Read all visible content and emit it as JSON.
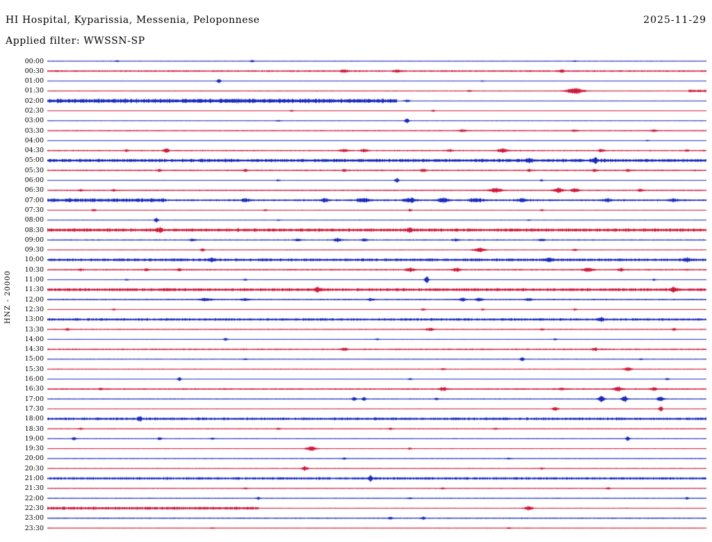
{
  "header": {
    "station_title": "HI Hospital, Kyparissia, Messenia, Peloponnese",
    "date": "2025-11-29",
    "filter_label": "Applied filter: WWSSN-SP"
  },
  "axis": {
    "channel_label": "HNZ - 20000"
  },
  "colors": {
    "b": "#1122bb",
    "r": "#cc1133",
    "background": "#ffffff",
    "text": "#000000"
  },
  "chart_data": {
    "type": "line",
    "subtype": "helicorder-seismogram",
    "title": "HI Hospital, Kyparissia, Messenia, Peloponnese",
    "date": "2025-11-29",
    "filter": "WWSSN-SP",
    "channel": "HNZ",
    "scale": 20000,
    "minutes_per_row": 30,
    "legend": "rows alternate colors b=blue, r=red; n=background noise amplitude px; sat=[startFrac,endFrac,ampPx] saturated band; sp=[posFrac,ampPx,widthPx] event spikes",
    "rows": [
      {
        "time": "00:00",
        "c": "b",
        "n": 0.35,
        "sat": [],
        "sp": [
          [
            0.105,
            1.2,
            2
          ],
          [
            0.31,
            1.8,
            2
          ],
          [
            0.8,
            1.0,
            2
          ]
        ]
      },
      {
        "time": "00:30",
        "c": "r",
        "n": 1.1,
        "sat": [],
        "sp": [
          [
            0.45,
            1.8,
            4
          ],
          [
            0.53,
            1.6,
            3
          ],
          [
            0.78,
            1.5,
            3
          ]
        ]
      },
      {
        "time": "01:00",
        "c": "b",
        "n": 0.3,
        "sat": [],
        "sp": [
          [
            0.26,
            3.8,
            2
          ],
          [
            0.66,
            1.0,
            2
          ]
        ]
      },
      {
        "time": "01:30",
        "c": "r",
        "n": 0.4,
        "sat": [
          [
            0.972,
            1.0,
            1.8
          ]
        ],
        "sp": [
          [
            0.64,
            1.2,
            2
          ],
          [
            0.8,
            4.5,
            9
          ]
        ]
      },
      {
        "time": "02:00",
        "c": "b",
        "n": 0.25,
        "sat": [
          [
            0.0,
            0.53,
            3.0
          ]
        ],
        "sp": [
          [
            0.545,
            2.0,
            3
          ]
        ]
      },
      {
        "time": "02:30",
        "c": "r",
        "n": 0.4,
        "sat": [],
        "sp": [
          [
            0.37,
            1.2,
            2
          ],
          [
            0.585,
            1.4,
            2
          ]
        ]
      },
      {
        "time": "03:00",
        "c": "b",
        "n": 0.35,
        "sat": [],
        "sp": [
          [
            0.35,
            1.0,
            2
          ],
          [
            0.545,
            4.2,
            2
          ]
        ]
      },
      {
        "time": "03:30",
        "c": "r",
        "n": 0.65,
        "sat": [],
        "sp": [
          [
            0.63,
            1.8,
            4
          ],
          [
            0.8,
            1.4,
            3
          ],
          [
            0.92,
            1.8,
            3
          ]
        ]
      },
      {
        "time": "04:00",
        "c": "b",
        "n": 0.25,
        "sat": [],
        "sp": [
          [
            0.91,
            1.0,
            2
          ]
        ]
      },
      {
        "time": "04:30",
        "c": "r",
        "n": 0.85,
        "sat": [],
        "sp": [
          [
            0.12,
            1.6,
            2
          ],
          [
            0.18,
            3.2,
            3
          ],
          [
            0.45,
            2.0,
            5
          ],
          [
            0.48,
            2.2,
            3
          ],
          [
            0.61,
            1.6,
            3
          ],
          [
            0.69,
            2.6,
            5
          ],
          [
            0.84,
            2.2,
            3
          ],
          [
            0.97,
            1.6,
            2
          ]
        ]
      },
      {
        "time": "05:00",
        "c": "b",
        "n": 0.3,
        "sat": [
          [
            0.0,
            1.0,
            2.2
          ]
        ],
        "sp": [
          [
            0.73,
            2.8,
            3
          ],
          [
            0.83,
            2.8,
            3
          ]
        ]
      },
      {
        "time": "05:30",
        "c": "r",
        "n": 0.95,
        "sat": [],
        "sp": [
          [
            0.17,
            1.8,
            2
          ],
          [
            0.3,
            1.6,
            2
          ],
          [
            0.45,
            1.8,
            2
          ],
          [
            0.57,
            2.2,
            3
          ],
          [
            0.73,
            1.8,
            2
          ],
          [
            0.83,
            1.8,
            2
          ],
          [
            0.88,
            1.8,
            2
          ]
        ]
      },
      {
        "time": "06:00",
        "c": "b",
        "n": 0.35,
        "sat": [],
        "sp": [
          [
            0.35,
            1.4,
            2
          ],
          [
            0.53,
            4.0,
            2
          ],
          [
            0.75,
            1.4,
            2
          ]
        ]
      },
      {
        "time": "06:30",
        "c": "r",
        "n": 0.75,
        "sat": [],
        "sp": [
          [
            0.05,
            1.6,
            2
          ],
          [
            0.1,
            1.6,
            2
          ],
          [
            0.68,
            3.5,
            6
          ],
          [
            0.775,
            3.5,
            5
          ],
          [
            0.8,
            3.0,
            4
          ],
          [
            0.9,
            1.8,
            3
          ]
        ]
      },
      {
        "time": "07:00",
        "c": "b",
        "n": 1.3,
        "sat": [
          [
            0.0,
            0.18,
            2.6
          ]
        ],
        "sp": [
          [
            0.3,
            2.0,
            4
          ],
          [
            0.42,
            2.2,
            4
          ],
          [
            0.48,
            2.8,
            6
          ],
          [
            0.55,
            2.8,
            6
          ],
          [
            0.6,
            2.8,
            6
          ],
          [
            0.65,
            2.6,
            6
          ],
          [
            0.72,
            2.2,
            5
          ],
          [
            0.85,
            2.0,
            4
          ],
          [
            0.95,
            2.0,
            4
          ]
        ]
      },
      {
        "time": "07:30",
        "c": "r",
        "n": 0.55,
        "sat": [],
        "sp": [
          [
            0.07,
            1.8,
            2
          ],
          [
            0.33,
            1.4,
            2
          ],
          [
            0.55,
            1.4,
            2
          ],
          [
            0.75,
            1.4,
            2
          ]
        ]
      },
      {
        "time": "08:00",
        "c": "b",
        "n": 0.3,
        "sat": [],
        "sp": [
          [
            0.165,
            3.8,
            2
          ],
          [
            0.35,
            1.0,
            2
          ],
          [
            0.73,
            1.0,
            2
          ]
        ]
      },
      {
        "time": "08:30",
        "c": "r",
        "n": 0.4,
        "sat": [
          [
            0.0,
            1.0,
            2.2
          ]
        ],
        "sp": [
          [
            0.17,
            2.6,
            3
          ],
          [
            0.55,
            2.2,
            3
          ]
        ]
      },
      {
        "time": "09:00",
        "c": "b",
        "n": 0.8,
        "sat": [],
        "sp": [
          [
            0.22,
            1.8,
            3
          ],
          [
            0.38,
            1.8,
            3
          ],
          [
            0.44,
            2.2,
            4
          ],
          [
            0.48,
            2.0,
            3
          ],
          [
            0.62,
            1.6,
            3
          ],
          [
            0.75,
            1.4,
            3
          ]
        ]
      },
      {
        "time": "09:30",
        "c": "r",
        "n": 0.5,
        "sat": [],
        "sp": [
          [
            0.235,
            3.0,
            2
          ],
          [
            0.655,
            2.8,
            6
          ],
          [
            0.8,
            1.4,
            3
          ]
        ]
      },
      {
        "time": "10:00",
        "c": "b",
        "n": 0.35,
        "sat": [
          [
            0.0,
            1.0,
            1.9
          ]
        ],
        "sp": [
          [
            0.25,
            2.6,
            3
          ],
          [
            0.76,
            2.6,
            3
          ],
          [
            0.97,
            2.4,
            3
          ]
        ]
      },
      {
        "time": "10:30",
        "c": "r",
        "n": 0.95,
        "sat": [],
        "sp": [
          [
            0.05,
            1.4,
            2
          ],
          [
            0.15,
            1.8,
            2
          ],
          [
            0.2,
            1.8,
            2
          ],
          [
            0.55,
            2.8,
            4
          ],
          [
            0.62,
            2.4,
            4
          ],
          [
            0.82,
            3.2,
            5
          ],
          [
            0.87,
            2.0,
            3
          ]
        ]
      },
      {
        "time": "11:00",
        "c": "b",
        "n": 0.45,
        "sat": [],
        "sp": [
          [
            0.12,
            1.4,
            2
          ],
          [
            0.3,
            1.4,
            2
          ],
          [
            0.575,
            6.5,
            2
          ],
          [
            0.92,
            1.4,
            2
          ]
        ]
      },
      {
        "time": "11:30",
        "c": "r",
        "n": 0.5,
        "sat": [
          [
            0.0,
            1.0,
            2.0
          ]
        ],
        "sp": [
          [
            0.41,
            2.6,
            3
          ],
          [
            0.95,
            2.6,
            3
          ]
        ]
      },
      {
        "time": "12:00",
        "c": "b",
        "n": 0.85,
        "sat": [],
        "sp": [
          [
            0.24,
            2.2,
            6
          ],
          [
            0.3,
            1.8,
            4
          ],
          [
            0.49,
            1.8,
            3
          ],
          [
            0.63,
            2.6,
            3
          ],
          [
            0.655,
            3.0,
            3
          ],
          [
            0.73,
            2.0,
            3
          ]
        ]
      },
      {
        "time": "12:30",
        "c": "r",
        "n": 0.45,
        "sat": [],
        "sp": [
          [
            0.1,
            1.4,
            2
          ],
          [
            0.57,
            1.8,
            2
          ],
          [
            0.66,
            1.4,
            2
          ],
          [
            0.8,
            1.4,
            2
          ]
        ]
      },
      {
        "time": "13:00",
        "c": "b",
        "n": 0.3,
        "sat": [
          [
            0.0,
            1.0,
            1.7
          ]
        ],
        "sp": [
          [
            0.84,
            3.4,
            2
          ]
        ]
      },
      {
        "time": "13:30",
        "c": "r",
        "n": 0.55,
        "sat": [],
        "sp": [
          [
            0.03,
            1.8,
            2
          ],
          [
            0.58,
            2.2,
            4
          ],
          [
            0.75,
            1.4,
            2
          ],
          [
            0.95,
            1.8,
            2
          ]
        ]
      },
      {
        "time": "14:00",
        "c": "b",
        "n": 0.4,
        "sat": [],
        "sp": [
          [
            0.27,
            2.2,
            2
          ],
          [
            0.5,
            1.4,
            2
          ],
          [
            0.77,
            1.4,
            2
          ]
        ]
      },
      {
        "time": "14:30",
        "c": "r",
        "n": 1.0,
        "sat": [],
        "sp": [
          [
            0.45,
            1.8,
            3
          ],
          [
            0.83,
            1.8,
            3
          ]
        ]
      },
      {
        "time": "15:00",
        "c": "b",
        "n": 0.4,
        "sat": [],
        "sp": [
          [
            0.3,
            1.4,
            2
          ],
          [
            0.72,
            3.6,
            2
          ],
          [
            0.9,
            1.4,
            2
          ]
        ]
      },
      {
        "time": "15:30",
        "c": "r",
        "n": 0.5,
        "sat": [],
        "sp": [
          [
            0.6,
            1.4,
            2
          ],
          [
            0.88,
            2.8,
            4
          ]
        ]
      },
      {
        "time": "16:00",
        "c": "b",
        "n": 0.4,
        "sat": [],
        "sp": [
          [
            0.2,
            2.8,
            2
          ],
          [
            0.55,
            1.4,
            2
          ],
          [
            0.94,
            1.6,
            2
          ]
        ]
      },
      {
        "time": "16:30",
        "c": "r",
        "n": 1.0,
        "sat": [],
        "sp": [
          [
            0.08,
            1.8,
            2
          ],
          [
            0.6,
            2.4,
            4
          ],
          [
            0.78,
            2.0,
            3
          ],
          [
            0.865,
            3.2,
            4
          ],
          [
            0.92,
            2.4,
            3
          ]
        ]
      },
      {
        "time": "17:00",
        "c": "b",
        "n": 0.55,
        "sat": [],
        "sp": [
          [
            0.465,
            3.6,
            2
          ],
          [
            0.48,
            3.2,
            2
          ],
          [
            0.59,
            2.0,
            2
          ],
          [
            0.84,
            5.5,
            3
          ],
          [
            0.875,
            4.5,
            3
          ],
          [
            0.93,
            4.5,
            3
          ]
        ]
      },
      {
        "time": "17:30",
        "c": "r",
        "n": 0.5,
        "sat": [],
        "sp": [
          [
            0.77,
            2.6,
            3
          ],
          [
            0.93,
            4.0,
            2
          ]
        ]
      },
      {
        "time": "18:00",
        "c": "b",
        "n": 0.4,
        "sat": [
          [
            0.0,
            1.0,
            1.8
          ]
        ],
        "sp": [
          [
            0.14,
            3.6,
            2
          ]
        ]
      },
      {
        "time": "18:30",
        "c": "r",
        "n": 0.5,
        "sat": [],
        "sp": [
          [
            0.05,
            1.4,
            2
          ],
          [
            0.35,
            1.4,
            2
          ],
          [
            0.52,
            1.8,
            2
          ],
          [
            0.68,
            1.4,
            2
          ]
        ]
      },
      {
        "time": "19:00",
        "c": "b",
        "n": 0.5,
        "sat": [],
        "sp": [
          [
            0.04,
            2.8,
            2
          ],
          [
            0.17,
            2.8,
            2
          ],
          [
            0.25,
            1.8,
            2
          ],
          [
            0.88,
            3.4,
            2
          ]
        ]
      },
      {
        "time": "19:30",
        "c": "r",
        "n": 0.55,
        "sat": [],
        "sp": [
          [
            0.4,
            3.2,
            5
          ],
          [
            0.55,
            1.4,
            2
          ]
        ]
      },
      {
        "time": "20:00",
        "c": "b",
        "n": 0.45,
        "sat": [],
        "sp": [
          [
            0.45,
            1.8,
            2
          ],
          [
            0.7,
            1.4,
            2
          ]
        ]
      },
      {
        "time": "20:30",
        "c": "r",
        "n": 0.5,
        "sat": [],
        "sp": [
          [
            0.39,
            2.8,
            3
          ],
          [
            0.75,
            1.4,
            2
          ]
        ]
      },
      {
        "time": "21:00",
        "c": "b",
        "n": 0.4,
        "sat": [
          [
            0.0,
            1.0,
            1.7
          ]
        ],
        "sp": [
          [
            0.49,
            3.4,
            2
          ]
        ]
      },
      {
        "time": "21:30",
        "c": "r",
        "n": 0.5,
        "sat": [],
        "sp": [
          [
            0.3,
            1.4,
            2
          ],
          [
            0.6,
            1.4,
            2
          ],
          [
            0.85,
            1.8,
            2
          ]
        ]
      },
      {
        "time": "22:00",
        "c": "b",
        "n": 0.5,
        "sat": [],
        "sp": [
          [
            0.32,
            1.8,
            2
          ],
          [
            0.55,
            1.4,
            2
          ],
          [
            0.97,
            1.8,
            2
          ]
        ]
      },
      {
        "time": "22:30",
        "c": "r",
        "n": 0.55,
        "sat": [
          [
            0.0,
            0.32,
            2.0
          ]
        ],
        "sp": [
          [
            0.73,
            3.2,
            4
          ]
        ]
      },
      {
        "time": "23:00",
        "c": "b",
        "n": 0.8,
        "sat": [],
        "sp": [
          [
            0.52,
            1.8,
            2
          ],
          [
            0.57,
            1.8,
            2
          ]
        ]
      },
      {
        "time": "23:30",
        "c": "r",
        "n": 0.4,
        "sat": [],
        "sp": [
          [
            0.25,
            1.0,
            2
          ],
          [
            0.7,
            1.2,
            2
          ]
        ]
      }
    ]
  }
}
